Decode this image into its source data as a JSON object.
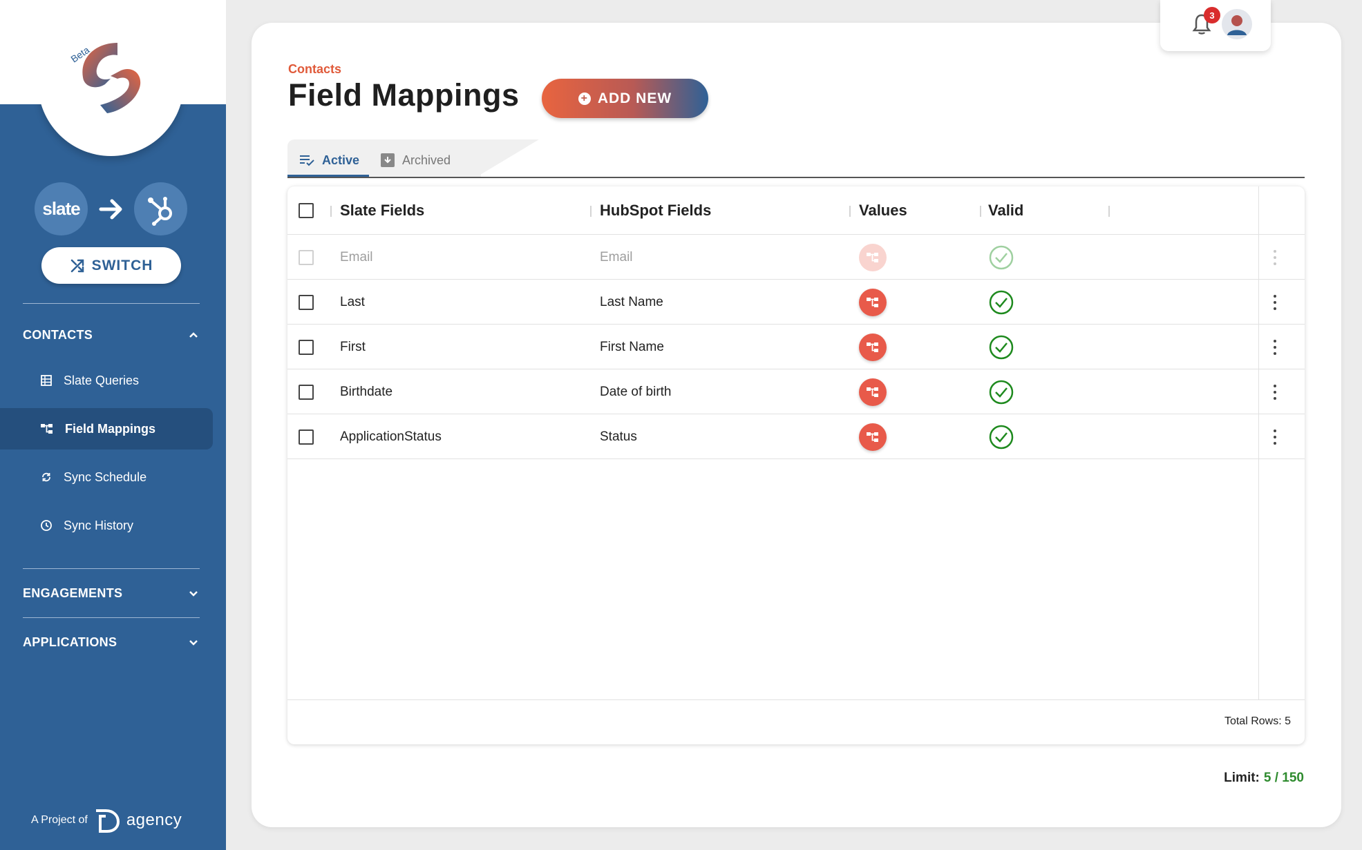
{
  "sidebar": {
    "logo_badge": "Beta",
    "switch_from": "slate",
    "switch_label": "SWITCH",
    "sections": [
      {
        "label": "CONTACTS",
        "expanded": true
      },
      {
        "label": "ENGAGEMENTS",
        "expanded": false
      },
      {
        "label": "APPLICATIONS",
        "expanded": false
      }
    ],
    "items": [
      {
        "label": "Slate Queries",
        "icon": "table-icon"
      },
      {
        "label": "Field Mappings",
        "icon": "mapping-icon",
        "active": true
      },
      {
        "label": "Sync Schedule",
        "icon": "sync-icon"
      },
      {
        "label": "Sync History",
        "icon": "clock-icon"
      }
    ],
    "footer_prefix": "A Project of",
    "footer_brand": "agency"
  },
  "header": {
    "notification_count": "3",
    "breadcrumb": "Contacts",
    "title": "Field Mappings",
    "add_button": "ADD NEW"
  },
  "tabs": [
    {
      "label": "Active",
      "active": true
    },
    {
      "label": "Archived",
      "active": false
    }
  ],
  "table": {
    "columns": [
      "Slate Fields",
      "HubSpot Fields",
      "Values",
      "Valid"
    ],
    "rows": [
      {
        "slate": "Email",
        "hubspot": "Email",
        "valid": true,
        "disabled": true
      },
      {
        "slate": "Last",
        "hubspot": "Last Name",
        "valid": true,
        "disabled": false
      },
      {
        "slate": "First",
        "hubspot": "First Name",
        "valid": true,
        "disabled": false
      },
      {
        "slate": "Birthdate",
        "hubspot": "Date of birth",
        "valid": true,
        "disabled": false
      },
      {
        "slate": "ApplicationStatus",
        "hubspot": "Status",
        "valid": true,
        "disabled": false
      }
    ],
    "total_rows": "Total Rows: 5"
  },
  "limit": {
    "label": "Limit:",
    "value": "5 / 150"
  },
  "colors": {
    "primary": "#2f6196",
    "accent": "#e05a3a",
    "valid": "#1e8a1e"
  }
}
